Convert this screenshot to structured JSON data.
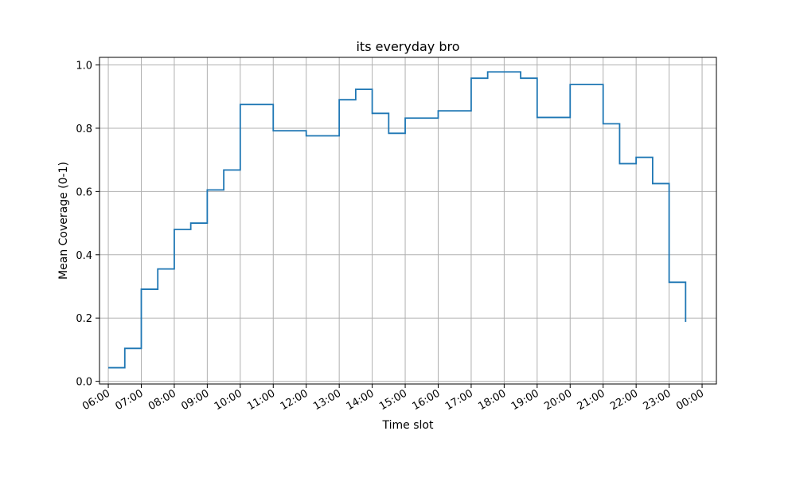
{
  "chart_data": {
    "type": "line",
    "drawstyle": "steps-post",
    "title": "its everyday bro",
    "xlabel": "Time slot",
    "ylabel": "Mean Coverage (0-1)",
    "grid": true,
    "line_color": "#1f77b4",
    "grid_color": "#b0b0b0",
    "xlim": [
      "05:44",
      "00:26"
    ],
    "ylim": [
      -0.0085,
      1.024
    ],
    "x_ticks": [
      "06:00",
      "07:00",
      "08:00",
      "09:00",
      "10:00",
      "11:00",
      "12:00",
      "13:00",
      "14:00",
      "15:00",
      "16:00",
      "17:00",
      "18:00",
      "19:00",
      "20:00",
      "21:00",
      "22:00",
      "23:00",
      "00:00"
    ],
    "y_ticks": [
      "0.0",
      "0.2",
      "0.4",
      "0.6",
      "0.8",
      "1.0"
    ],
    "x": [
      "06:00",
      "06:30",
      "07:00",
      "07:30",
      "08:00",
      "08:30",
      "09:00",
      "09:30",
      "10:00",
      "10:30",
      "11:00",
      "11:30",
      "12:00",
      "12:30",
      "13:00",
      "13:30",
      "14:00",
      "14:30",
      "15:00",
      "15:30",
      "16:00",
      "16:30",
      "17:00",
      "17:30",
      "18:00",
      "18:30",
      "19:00",
      "19:30",
      "20:00",
      "20:30",
      "21:00",
      "21:30",
      "22:00",
      "22:30",
      "23:00",
      "23:30"
    ],
    "y": [
      0.043,
      0.104,
      0.291,
      0.355,
      0.48,
      0.5,
      0.605,
      0.668,
      0.875,
      0.875,
      0.792,
      0.792,
      0.776,
      0.776,
      0.89,
      0.923,
      0.847,
      0.784,
      0.832,
      0.832,
      0.855,
      0.855,
      0.958,
      0.978,
      0.978,
      0.958,
      0.834,
      0.834,
      0.938,
      0.938,
      0.814,
      0.688,
      0.708,
      0.625,
      0.313,
      0.188
    ]
  }
}
